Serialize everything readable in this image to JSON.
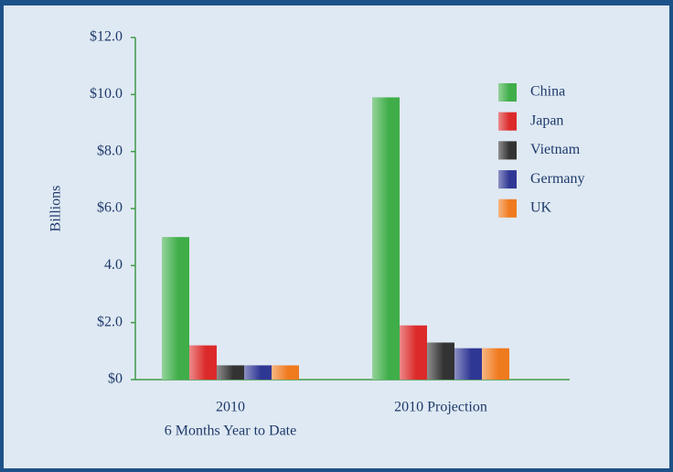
{
  "chart_data": {
    "type": "bar",
    "ylabel": "Billions",
    "categories": [
      [
        "2010",
        "6 Months Year to Date"
      ],
      [
        "2010 Projection"
      ]
    ],
    "series": [
      {
        "name": "China",
        "color": "#3fae49",
        "values": [
          5.0,
          9.9
        ]
      },
      {
        "name": "Japan",
        "color": "#dc2a2a",
        "values": [
          1.2,
          1.9
        ]
      },
      {
        "name": "Vietnam",
        "color": "#333333",
        "values": [
          0.5,
          1.3
        ]
      },
      {
        "name": "Germany",
        "color": "#2f3794",
        "values": [
          0.5,
          1.1
        ]
      },
      {
        "name": "UK",
        "color": "#f07a1e",
        "values": [
          0.5,
          1.1
        ]
      }
    ],
    "ylim": [
      0,
      12
    ],
    "yticks": [
      {
        "value": 0,
        "label": "$0"
      },
      {
        "value": 2,
        "label": "$2.0"
      },
      {
        "value": 4,
        "label": "4.0"
      },
      {
        "value": 6,
        "label": "$6.0"
      },
      {
        "value": 8,
        "label": "$8.0"
      },
      {
        "value": 10,
        "label": "$10.0"
      },
      {
        "value": 12,
        "label": "$12.0"
      }
    ],
    "legend": "upper right"
  }
}
